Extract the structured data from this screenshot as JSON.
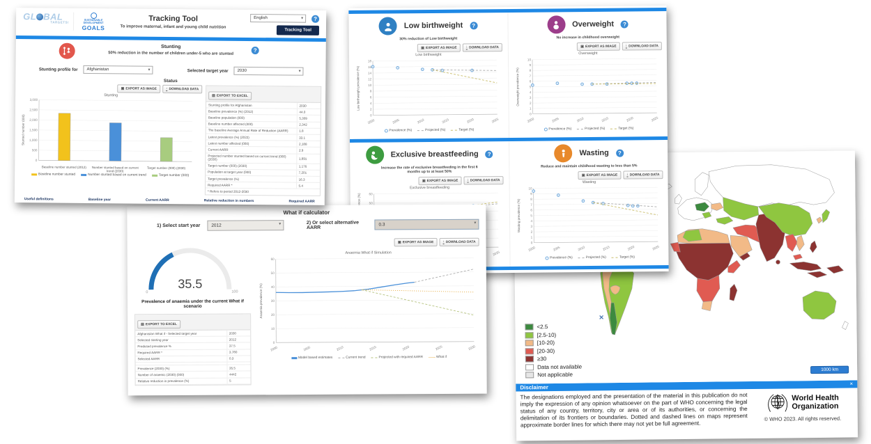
{
  "ui": {
    "help": "?"
  },
  "tracker": {
    "logo_global_a": "GL",
    "logo_global_b": "BAL",
    "logo_global_c": "TARGETS!",
    "logo_sdg_un": "UN",
    "logo_sdg_l1": "SUSTAINABLE",
    "logo_sdg_l2": "DEVELOPMENT",
    "logo_sdg_l3": "GOALS",
    "title": "Tracking Tool",
    "subtitle": "To improve maternal, infant and young child nutrition",
    "language_value": "English",
    "nav_button": "Tracking Tool",
    "section_title": "Stunting",
    "section_subtitle": "50% reduction in the number of children under-5 who are stunted",
    "profile_label": "Stunting profile for",
    "profile_value": "Afghanistan",
    "target_year_label": "Selected target year",
    "target_year_value": "2030",
    "status_label": "Status",
    "btn_export_image": "EXPORT AS IMAGE",
    "btn_download_data": "DOWNLOAD DATA",
    "btn_export_excel": "EXPORT TO EXCEL",
    "table_rows": [
      [
        "Stunting profile for Afghanistan",
        "2030"
      ],
      [
        "Baseline prevalence (%) (2012)",
        "44.0"
      ],
      [
        "Baseline population (000)",
        "5,309"
      ],
      [
        "Baseline number affected (000)",
        "2,342"
      ],
      [
        "The baseline Average Annual Rate of Reduction (AARR)",
        "1.8"
      ],
      [
        "Latest prevalence (%) (2022)",
        "33.1"
      ],
      [
        "Latest number affected (000)",
        "2,188"
      ],
      [
        "Current AARR",
        "2.9"
      ],
      [
        "Projected number stunted based on current trend (000) (2030)",
        "1,891"
      ],
      [
        "Target number (000) (2030)",
        "1,176"
      ],
      [
        "Population at target year (000)",
        "7,201"
      ],
      [
        "Target prevalence (%)",
        "16.3"
      ],
      [
        "Required AARR *",
        "5.4"
      ]
    ],
    "table_footnote": "* Refers to period 2012-2030",
    "footer_links": [
      "Useful definitions",
      "Baseline year",
      "Current AARR",
      "Relative reduction in numbers",
      "Required AARR"
    ]
  },
  "targets": {
    "btn_export_image": "EXPORT AS IMAGE",
    "btn_download_data": "DOWNLOAD DATA",
    "sections": [
      {
        "title": "Low birthweight",
        "subtitle": "30% reduction of Low birthweight",
        "icon_color": "#2F80C3"
      },
      {
        "title": "Overweight",
        "subtitle": "No increase in childhood overweight",
        "icon_color": "#9C3D8A"
      },
      {
        "title": "Exclusive breastfeeding",
        "subtitle": "Increase the rate of exclusive breastfeeding in the first 6 months up to at least 50%",
        "icon_color": "#3D9C40"
      },
      {
        "title": "Wasting",
        "subtitle": "Reduce and maintain childhood wasting to less than 5%",
        "icon_color": "#E8892B"
      }
    ]
  },
  "whatif": {
    "title": "What if calculator",
    "start_year_label": "1) Select start year",
    "start_year_value": "2012",
    "aarr_label": "2) Or select alternative AARR",
    "aarr_value": "0.3",
    "gauge": {
      "value": "35.5",
      "min": "0",
      "max": "100",
      "label": "Prevalence of anaemia under the current What if scenario"
    },
    "btn_export_excel": "EXPORT TO EXCEL",
    "btn_export_image": "EXPORT AS IMAGE",
    "btn_download_data": "DOWNLOAD DATA",
    "table_rows": [
      [
        "Afghanistan What if - Selected target year",
        "2030"
      ],
      [
        "Selected starting year",
        "2012"
      ],
      [
        "Predicted prevalence %",
        "37.5"
      ],
      [
        "Required AARR *",
        "3.780"
      ],
      [
        "Selected AARR",
        "0.3"
      ],
      [
        "",
        ""
      ],
      [
        "Prevalence (2030) (%)",
        "35.5"
      ],
      [
        "Number of anaemic (2030) (000)",
        "4442"
      ],
      [
        "Relative reduction in prevalence (%)",
        "5"
      ]
    ]
  },
  "map": {
    "legend": [
      {
        "key": "lt25",
        "label": "<2.5",
        "color": "#3C8A3F"
      },
      {
        "key": "r2510",
        "label": "[2.5-10)",
        "color": "#8FC640"
      },
      {
        "key": "r1020",
        "label": "[10-20)",
        "color": "#F2BA87"
      },
      {
        "key": "r2030",
        "label": "[20-30)",
        "color": "#E05B52"
      },
      {
        "key": "ge30",
        "label": "≥30",
        "color": "#8C3331"
      },
      {
        "key": "nodata",
        "label": "Data not available",
        "color": "#FFFFFF"
      },
      {
        "key": "na",
        "label": "Not applicable",
        "color": "#E6E6E6"
      }
    ],
    "marker_x": "✕",
    "scale_label": "1000 km",
    "disclaimer_title": "Disclaimer",
    "disclaimer_close": "✕",
    "disclaimer_text": "The designations employed and the presentation of the material in this publication do not imply the expression of any opinion whatsoever on the part of WHO concerning the legal status of any country, territory, city or area or of its authorities, or concerning the delimitation of its frontiers or boundaries. Dotted and dashed lines on maps represent approximate border lines for which there may not yet be full agreement.",
    "who_name_l1": "World Health",
    "who_name_l2": "Organization",
    "copyright": "© WHO 2023. All rights reserved."
  },
  "chart_data": [
    {
      "id": "stunting_bar",
      "type": "bar",
      "title": "Stunting",
      "ylabel": "Stunted number (000)",
      "ylim": [
        0,
        3000
      ],
      "yticks": 500,
      "categories": [
        "Baseline number stunted (2012)",
        "Number stunted based on current trend (2030)",
        "Target number (000) (2030)"
      ],
      "values": [
        2342,
        1891,
        1176
      ],
      "colors": [
        "#F2C21C",
        "#4A90D9",
        "#A8CC7F"
      ],
      "legend": [
        "Baseline number stunted",
        "Number stunted based on current trend",
        "Target number (000)"
      ]
    },
    {
      "id": "lbw_line",
      "type": "line",
      "title": "Low birthweight",
      "ylabel": "Low birthweight prevalence (%)",
      "ylim": [
        0,
        18
      ],
      "yticks": 2,
      "xlim": [
        2000,
        2025
      ],
      "xticks": 5,
      "series": [
        {
          "name": "Prevalence (%)",
          "color": "#6FA8DC",
          "style": "points",
          "points": [
            [
              2000,
              16.1
            ],
            [
              2005,
              15.7
            ],
            [
              2010,
              15.1
            ],
            [
              2012,
              14.9
            ],
            [
              2014,
              14.7
            ],
            [
              2020,
              14.6
            ]
          ]
        },
        {
          "name": "Projected (%)",
          "color": "#ABABAB",
          "style": "dash",
          "points": [
            [
              2012,
              14.9
            ],
            [
              2025,
              14.5
            ]
          ]
        },
        {
          "name": "Target (%)",
          "color": "#C9BD6B",
          "style": "dash",
          "points": [
            [
              2012,
              14.9
            ],
            [
              2025,
              10.4
            ]
          ]
        }
      ]
    },
    {
      "id": "ow_line",
      "type": "line",
      "title": "Overweight",
      "ylabel": "Overweight prevalence (%)",
      "ylim": [
        0,
        10
      ],
      "yticks": 1,
      "xlim": [
        2000,
        2025
      ],
      "xticks": 5,
      "series": [
        {
          "name": "Prevalence (%)",
          "color": "#6FA8DC",
          "style": "points",
          "points": [
            [
              2000,
              5.3
            ],
            [
              2005,
              5.6
            ],
            [
              2010,
              5.4
            ],
            [
              2012,
              5.4
            ],
            [
              2015,
              5.4
            ],
            [
              2019,
              5.5
            ],
            [
              2020,
              5.5
            ],
            [
              2021,
              5.5
            ]
          ]
        },
        {
          "name": "Projected (%)",
          "color": "#ABABAB",
          "style": "dash",
          "points": [
            [
              2012,
              5.4
            ],
            [
              2025,
              5.6
            ]
          ]
        },
        {
          "name": "Target (%)",
          "color": "#C9BD6B",
          "style": "dash",
          "points": [
            [
              2012,
              5.4
            ],
            [
              2025,
              5.4
            ]
          ]
        }
      ]
    },
    {
      "id": "ebf_line",
      "type": "line",
      "title": "Exclusive breastfeeding",
      "ylabel": "Exclusive breastfeeding prevalence (%)",
      "ylim": [
        0,
        60
      ],
      "yticks": 10,
      "xlim": [
        2000,
        2025
      ],
      "xticks": 5,
      "series": [
        {
          "name": "Prevalence (%)",
          "color": "#6FA8DC",
          "style": "points",
          "points": [
            [
              2000,
              28
            ],
            [
              2005,
              33
            ],
            [
              2010,
              38
            ],
            [
              2015,
              43
            ],
            [
              2020,
              46
            ]
          ]
        },
        {
          "name": "Projected (%)",
          "color": "#ABABAB",
          "style": "dash",
          "points": [
            [
              2015,
              43
            ],
            [
              2025,
              48
            ]
          ]
        },
        {
          "name": "Target (%)",
          "color": "#C9BD6B",
          "style": "dash",
          "points": [
            [
              2015,
              43
            ],
            [
              2025,
              50
            ]
          ]
        }
      ]
    },
    {
      "id": "wasting_line",
      "type": "line",
      "title": "Wasting",
      "ylabel": "Wasting prevalence (%)",
      "ylim": [
        0,
        10
      ],
      "yticks": 1,
      "xlim": [
        2000,
        2025
      ],
      "xticks": 5,
      "series": [
        {
          "name": "Prevalence (%)",
          "color": "#6FA8DC",
          "style": "points",
          "points": [
            [
              2000,
              9.5
            ],
            [
              2005,
              8.7
            ],
            [
              2010,
              7.6
            ],
            [
              2012,
              7.3
            ],
            [
              2014,
              7.1
            ],
            [
              2019,
              6.7
            ],
            [
              2020,
              6.6
            ],
            [
              2021,
              6.6
            ]
          ]
        },
        {
          "name": "Projected (%)",
          "color": "#ABABAB",
          "style": "dash",
          "points": [
            [
              2012,
              7.3
            ],
            [
              2025,
              6.4
            ]
          ]
        },
        {
          "name": "Target (%)",
          "color": "#C9BD6B",
          "style": "dash",
          "points": [
            [
              2012,
              7.3
            ],
            [
              2025,
              4.9
            ]
          ]
        }
      ]
    },
    {
      "id": "anaemia_line",
      "type": "line",
      "title": "Anaemia What if Simulation",
      "ylabel": "Anaemia prevalence (%)",
      "ylim": [
        0,
        60
      ],
      "yticks": 10,
      "xlim": [
        2000,
        2030
      ],
      "xticks": 5,
      "series": [
        {
          "name": "Model based estimates",
          "color": "#4A90D9",
          "style": "solid",
          "points": [
            [
              2000,
              36
            ],
            [
              2002,
              35.8
            ],
            [
              2004,
              35.8
            ],
            [
              2006,
              36
            ],
            [
              2008,
              36.2
            ],
            [
              2010,
              36.5
            ],
            [
              2012,
              37
            ],
            [
              2014,
              38
            ],
            [
              2016,
              39.5
            ],
            [
              2018,
              41
            ],
            [
              2020,
              42.3
            ],
            [
              2021,
              42.8
            ]
          ]
        },
        {
          "name": "Current trend",
          "color": "#ABABAB",
          "style": "dash",
          "points": [
            [
              2021,
              42.8
            ],
            [
              2030,
              52
            ]
          ]
        },
        {
          "name": "Projected with required AARR",
          "color": "#B5C27E",
          "style": "dash",
          "points": [
            [
              2013,
              37.6
            ],
            [
              2030,
              19
            ]
          ]
        },
        {
          "name": "What if",
          "color": "#E8B04B",
          "style": "dot",
          "points": [
            [
              2013,
              37.6
            ],
            [
              2030,
              35.5
            ]
          ]
        }
      ]
    }
  ]
}
